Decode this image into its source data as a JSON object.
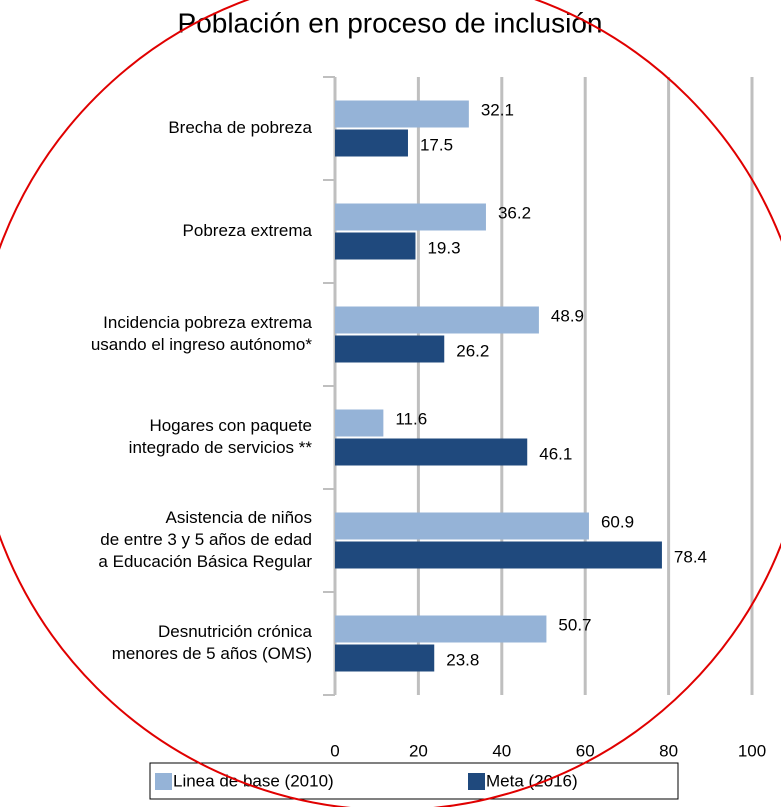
{
  "chart_data": {
    "type": "bar",
    "orientation": "horizontal",
    "title": "Población en proceso de inclusión",
    "categories": [
      [
        "Brecha de pobreza"
      ],
      [
        "Pobreza extrema"
      ],
      [
        "Incidencia pobreza extrema",
        "usando el ingreso autónomo*"
      ],
      [
        "Hogares con paquete",
        "integrado de servicios **"
      ],
      [
        "Asistencia de niños",
        "de entre 3 y 5 años de edad",
        "a Educación Básica Regular"
      ],
      [
        "Desnutrición crónica",
        "menores de 5 años (OMS)"
      ]
    ],
    "series": [
      {
        "name": "Linea de base (2010)",
        "color": "#95b3d7",
        "values": [
          32.1,
          36.2,
          48.9,
          11.6,
          60.9,
          50.7
        ]
      },
      {
        "name": "Meta (2016)",
        "color": "#1f497d",
        "values": [
          17.5,
          19.3,
          26.2,
          46.1,
          78.4,
          23.8
        ]
      }
    ],
    "xlim": [
      0,
      100
    ],
    "xticks": [
      0,
      20,
      40,
      60,
      80,
      100
    ],
    "grid": true,
    "legend": "bottom"
  }
}
